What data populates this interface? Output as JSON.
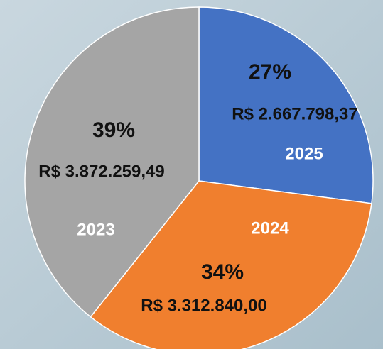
{
  "chart_data": {
    "type": "pie",
    "categories": [
      "2025",
      "2024",
      "2023"
    ],
    "values": [
      2667798.37,
      3312840.0,
      3872259.49
    ],
    "value_labels": [
      "R$ 2.667.798,37",
      "R$ 3.312.840,00",
      "R$ 3.872.259,49"
    ],
    "percentages": [
      27,
      34,
      39
    ],
    "percentage_labels": [
      "27%",
      "34%",
      "39%"
    ],
    "colors": [
      "#4472c4",
      "#f07f2e",
      "#a5a5a5"
    ]
  }
}
